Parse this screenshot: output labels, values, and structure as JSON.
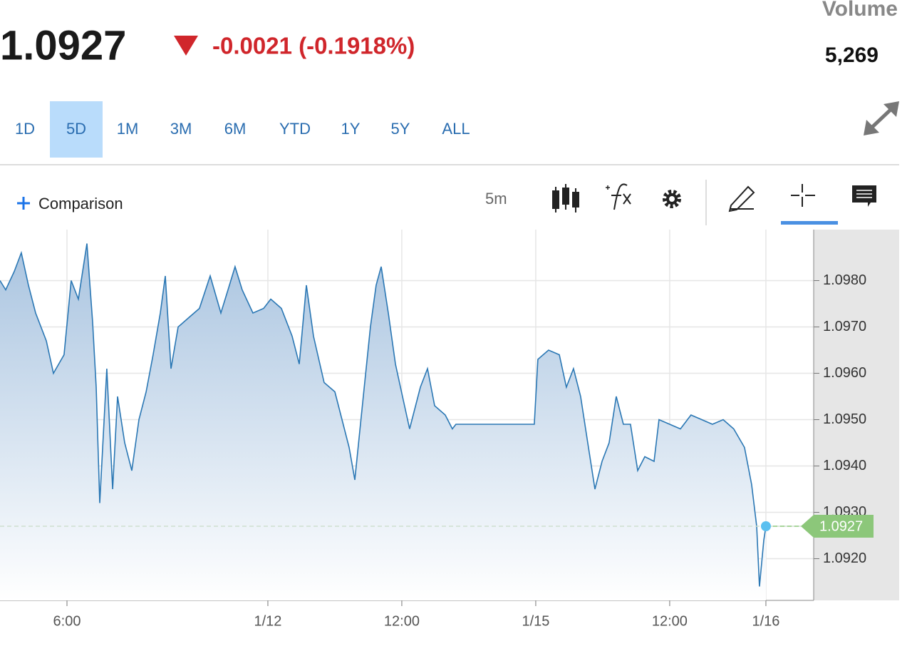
{
  "header": {
    "price": "1.0927",
    "change": "-0.0021 (-0.1918%)",
    "volume_label": "Volume",
    "volume": "5,269"
  },
  "ranges": [
    "1D",
    "5D",
    "1M",
    "3M",
    "6M",
    "YTD",
    "1Y",
    "5Y",
    "ALL"
  ],
  "toolbar": {
    "comparison": "Comparison",
    "interval": "5m"
  },
  "chart_data": {
    "type": "line",
    "color": "#2a77b4",
    "x": [
      0,
      0.51,
      1.28,
      1.91,
      2.55,
      3.19,
      4.15,
      4.79,
      5.74,
      6.38,
      7.02,
      7.79,
      8.3,
      8.62,
      8.94,
      9.57,
      10.09,
      10.53,
      11.17,
      11.81,
      12.45,
      13.09,
      13.72,
      14.36,
      14.81,
      15.32,
      15.96,
      16.91,
      17.87,
      18.83,
      19.79,
      20.43,
      21.06,
      21.7,
      22.66,
      23.62,
      24.26,
      25.21,
      26.17,
      26.81,
      27.45,
      28.09,
      29.04,
      30.0,
      30.64,
      31.28,
      31.79,
      32.55,
      33.19,
      33.7,
      34.15,
      34.79,
      35.43,
      36.06,
      36.7,
      37.66,
      38.3,
      38.94,
      39.89,
      40.53,
      40.85,
      47.87,
      48.19,
      49.15,
      50.11,
      50.74,
      51.38,
      52.02,
      52.66,
      53.3,
      53.94,
      54.57,
      55.21,
      55.85,
      56.49,
      57.13,
      57.77,
      58.6,
      59.04,
      60.0,
      60.96,
      61.91,
      62.87,
      63.83,
      64.79,
      65.74,
      66.7,
      67.34,
      67.79,
      68.04,
      68.43,
      68.62
    ],
    "values": [
      1.098,
      1.0978,
      1.0982,
      1.0986,
      1.0979,
      1.0973,
      1.0967,
      1.096,
      1.0964,
      1.098,
      1.0976,
      1.0988,
      1.0971,
      1.0957,
      1.0932,
      1.0961,
      1.0935,
      1.0955,
      1.0945,
      1.0939,
      1.095,
      1.0956,
      1.0964,
      1.0973,
      1.0981,
      1.0961,
      1.097,
      1.0972,
      1.0974,
      1.0981,
      1.0973,
      1.0978,
      1.0983,
      1.0978,
      1.0973,
      1.0974,
      1.0976,
      1.0974,
      1.0968,
      1.0962,
      1.0979,
      1.0968,
      1.0958,
      1.0956,
      1.095,
      1.0944,
      1.0937,
      1.0955,
      1.097,
      1.0979,
      1.0983,
      1.0973,
      1.0962,
      1.0955,
      1.0948,
      1.0957,
      1.0961,
      1.0953,
      1.0951,
      1.0948,
      1.0949,
      1.0949,
      1.0963,
      1.0965,
      1.0964,
      1.0957,
      1.0961,
      1.0955,
      1.0945,
      1.0935,
      1.0941,
      1.0945,
      1.0955,
      1.0949,
      1.0949,
      1.0939,
      1.0942,
      1.0941,
      1.095,
      1.0949,
      1.0948,
      1.0951,
      1.095,
      1.0949,
      1.095,
      1.0948,
      1.0944,
      1.0936,
      1.0927,
      1.0914,
      1.0924,
      1.0927
    ],
    "xlim": [
      0,
      72.9
    ],
    "xticks": [
      {
        "value": 6,
        "label": "6:00"
      },
      {
        "value": 24,
        "label": "1/12"
      },
      {
        "value": 36,
        "label": "12:00"
      },
      {
        "value": 48,
        "label": "1/15"
      },
      {
        "value": 60,
        "label": "12:00"
      },
      {
        "value": 68.62,
        "label": "1/16"
      }
    ],
    "ylim": [
      1.0911,
      1.0991
    ],
    "yticks": [
      {
        "value": 1.092,
        "label": "1.0920"
      },
      {
        "value": 1.093,
        "label": "1.0930"
      },
      {
        "value": 1.094,
        "label": "1.0940"
      },
      {
        "value": 1.095,
        "label": "1.0950"
      },
      {
        "value": 1.096,
        "label": "1.0960"
      },
      {
        "value": 1.097,
        "label": "1.0970"
      },
      {
        "value": 1.098,
        "label": "1.0980"
      }
    ],
    "grid": true
  }
}
